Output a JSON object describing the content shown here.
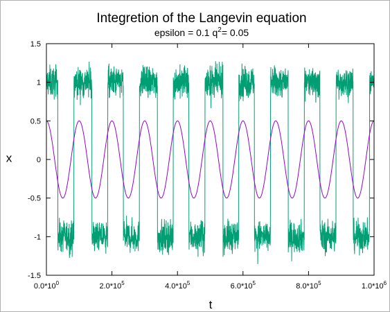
{
  "chart_data": {
    "type": "line",
    "title": "Integretion of the Langevin equation",
    "subtitle": {
      "prefix": "epsilon = 0.1 q",
      "superscript": "2",
      "suffix": "= 0.05"
    },
    "xlabel": "t",
    "ylabel": "x",
    "xlim": [
      0,
      1000000
    ],
    "ylim": [
      -1.5,
      1.5
    ],
    "grid": false,
    "x_ticks": [
      {
        "value": 0,
        "base": "0.0*10",
        "exp": "0"
      },
      {
        "value": 200000,
        "base": "2.0*10",
        "exp": "5"
      },
      {
        "value": 400000,
        "base": "4.0*10",
        "exp": "5"
      },
      {
        "value": 600000,
        "base": "6.0*10",
        "exp": "5"
      },
      {
        "value": 800000,
        "base": "8.0*10",
        "exp": "5"
      },
      {
        "value": 1000000,
        "base": "1.0*10",
        "exp": "6"
      }
    ],
    "y_ticks": [
      {
        "value": 1.5,
        "label": "1.5"
      },
      {
        "value": 1,
        "label": "1"
      },
      {
        "value": 0.5,
        "label": "0.5"
      },
      {
        "value": 0,
        "label": "0"
      },
      {
        "value": -0.5,
        "label": "-0.5"
      },
      {
        "value": -1,
        "label": "-1"
      },
      {
        "value": -1.5,
        "label": "-1.5"
      }
    ],
    "series": [
      {
        "kind": "noisy-switching",
        "color": "#009e73",
        "switch_times": [
          0,
          35000,
          84000,
          139000,
          187000,
          235000,
          284000,
          339000,
          387000,
          435000,
          484000,
          539000,
          587000,
          635000,
          684000,
          738000,
          787000,
          835000,
          884000,
          936000,
          986000
        ],
        "levels": [
          1,
          -1,
          1,
          -1,
          1,
          -1,
          1,
          -1,
          1,
          -1,
          1,
          -1,
          1,
          -1,
          1,
          -1,
          1,
          -1,
          1,
          -1,
          1
        ]
      },
      {
        "kind": "periodic-forcing",
        "color": "#9400d3",
        "function": "0.5*cos(2*pi*t/100000)",
        "amplitude": 0.5,
        "period": 100000
      }
    ]
  }
}
